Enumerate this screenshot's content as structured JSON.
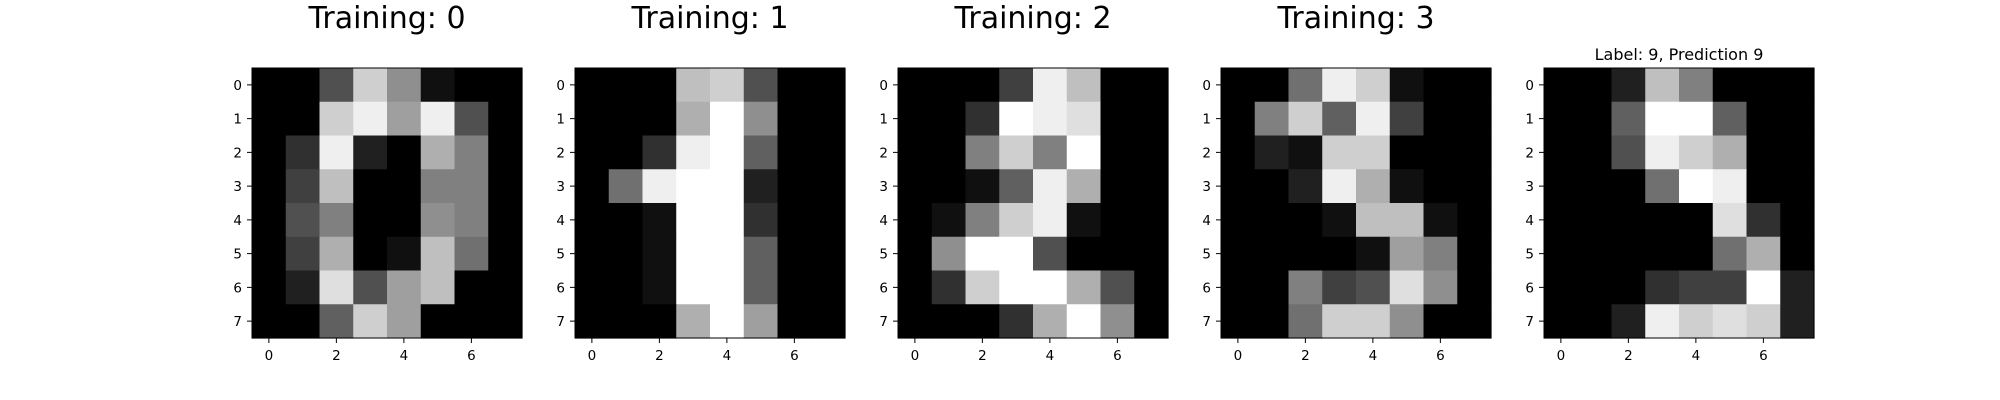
{
  "chart_data": [
    {
      "type": "heatmap",
      "title": "Training: 0",
      "title_style": "large",
      "colormap": "gray",
      "value_range": [
        0,
        16
      ],
      "x_ticks": [
        0,
        2,
        4,
        6
      ],
      "y_ticks": [
        0,
        1,
        2,
        3,
        4,
        5,
        6,
        7
      ],
      "xlim": [
        -0.5,
        7.5
      ],
      "ylim": [
        7.5,
        -0.5
      ],
      "matrix": [
        [
          0,
          0,
          5,
          13,
          9,
          1,
          0,
          0
        ],
        [
          0,
          0,
          13,
          15,
          10,
          15,
          5,
          0
        ],
        [
          0,
          3,
          15,
          2,
          0,
          11,
          8,
          0
        ],
        [
          0,
          4,
          12,
          0,
          0,
          8,
          8,
          0
        ],
        [
          0,
          5,
          8,
          0,
          0,
          9,
          8,
          0
        ],
        [
          0,
          4,
          11,
          0,
          1,
          12,
          7,
          0
        ],
        [
          0,
          2,
          14,
          5,
          10,
          12,
          0,
          0
        ],
        [
          0,
          0,
          6,
          13,
          10,
          0,
          0,
          0
        ]
      ]
    },
    {
      "type": "heatmap",
      "title": "Training: 1",
      "title_style": "large",
      "colormap": "gray",
      "value_range": [
        0,
        16
      ],
      "x_ticks": [
        0,
        2,
        4,
        6
      ],
      "y_ticks": [
        0,
        1,
        2,
        3,
        4,
        5,
        6,
        7
      ],
      "xlim": [
        -0.5,
        7.5
      ],
      "ylim": [
        7.5,
        -0.5
      ],
      "matrix": [
        [
          0,
          0,
          0,
          12,
          13,
          5,
          0,
          0
        ],
        [
          0,
          0,
          0,
          11,
          16,
          9,
          0,
          0
        ],
        [
          0,
          0,
          3,
          15,
          16,
          6,
          0,
          0
        ],
        [
          0,
          7,
          15,
          16,
          16,
          2,
          0,
          0
        ],
        [
          0,
          0,
          1,
          16,
          16,
          3,
          0,
          0
        ],
        [
          0,
          0,
          1,
          16,
          16,
          6,
          0,
          0
        ],
        [
          0,
          0,
          1,
          16,
          16,
          6,
          0,
          0
        ],
        [
          0,
          0,
          0,
          11,
          16,
          10,
          0,
          0
        ]
      ]
    },
    {
      "type": "heatmap",
      "title": "Training: 2",
      "title_style": "large",
      "colormap": "gray",
      "value_range": [
        0,
        16
      ],
      "x_ticks": [
        0,
        2,
        4,
        6
      ],
      "y_ticks": [
        0,
        1,
        2,
        3,
        4,
        5,
        6,
        7
      ],
      "xlim": [
        -0.5,
        7.5
      ],
      "ylim": [
        7.5,
        -0.5
      ],
      "matrix": [
        [
          0,
          0,
          0,
          4,
          15,
          12,
          0,
          0
        ],
        [
          0,
          0,
          3,
          16,
          15,
          14,
          0,
          0
        ],
        [
          0,
          0,
          8,
          13,
          8,
          16,
          0,
          0
        ],
        [
          0,
          0,
          1,
          6,
          15,
          11,
          0,
          0
        ],
        [
          0,
          1,
          8,
          13,
          15,
          1,
          0,
          0
        ],
        [
          0,
          9,
          16,
          16,
          5,
          0,
          0,
          0
        ],
        [
          0,
          3,
          13,
          16,
          16,
          11,
          5,
          0
        ],
        [
          0,
          0,
          0,
          3,
          11,
          16,
          9,
          0
        ]
      ]
    },
    {
      "type": "heatmap",
      "title": "Training: 3",
      "title_style": "large",
      "colormap": "gray",
      "value_range": [
        0,
        16
      ],
      "x_ticks": [
        0,
        2,
        4,
        6
      ],
      "y_ticks": [
        0,
        1,
        2,
        3,
        4,
        5,
        6,
        7
      ],
      "xlim": [
        -0.5,
        7.5
      ],
      "ylim": [
        7.5,
        -0.5
      ],
      "matrix": [
        [
          0,
          0,
          7,
          15,
          13,
          1,
          0,
          0
        ],
        [
          0,
          8,
          13,
          6,
          15,
          4,
          0,
          0
        ],
        [
          0,
          2,
          1,
          13,
          13,
          0,
          0,
          0
        ],
        [
          0,
          0,
          2,
          15,
          11,
          1,
          0,
          0
        ],
        [
          0,
          0,
          0,
          1,
          12,
          12,
          1,
          0
        ],
        [
          0,
          0,
          0,
          0,
          1,
          10,
          8,
          0
        ],
        [
          0,
          0,
          8,
          4,
          5,
          14,
          9,
          0
        ],
        [
          0,
          0,
          7,
          13,
          13,
          9,
          0,
          0
        ]
      ]
    },
    {
      "type": "heatmap",
      "title": "Label: 9, Prediction 9",
      "title_style": "small",
      "colormap": "gray",
      "value_range": [
        0,
        16
      ],
      "x_ticks": [
        0,
        2,
        4,
        6
      ],
      "y_ticks": [
        0,
        1,
        2,
        3,
        4,
        5,
        6,
        7
      ],
      "xlim": [
        -0.5,
        7.5
      ],
      "ylim": [
        7.5,
        -0.5
      ],
      "matrix": [
        [
          0,
          0,
          2,
          12,
          8,
          0,
          0,
          0
        ],
        [
          0,
          0,
          6,
          16,
          16,
          6,
          0,
          0
        ],
        [
          0,
          0,
          5,
          15,
          13,
          11,
          0,
          0
        ],
        [
          0,
          0,
          0,
          7,
          16,
          15,
          0,
          0
        ],
        [
          0,
          0,
          0,
          0,
          0,
          14,
          3,
          0
        ],
        [
          0,
          0,
          0,
          0,
          0,
          7,
          11,
          0
        ],
        [
          0,
          0,
          0,
          3,
          4,
          4,
          16,
          2
        ],
        [
          0,
          0,
          2,
          15,
          13,
          14,
          13,
          2
        ]
      ]
    }
  ]
}
